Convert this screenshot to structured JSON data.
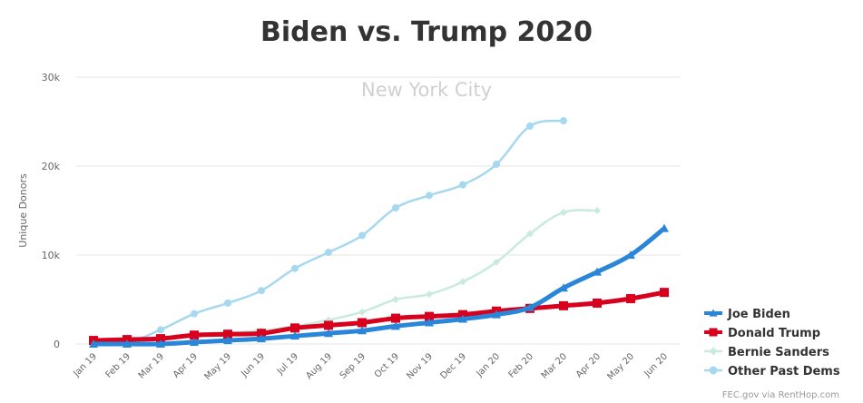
{
  "chart_data": {
    "type": "line",
    "title": "Biden vs. Trump 2020",
    "subtitle": "New York City",
    "ylabel": "Unique Donors",
    "xlabel": "",
    "categories": [
      "Jan 19",
      "Feb 19",
      "Mar 19",
      "Apr 19",
      "May 19",
      "Jun 19",
      "Jul 19",
      "Aug 19",
      "Sep 19",
      "Oct 19",
      "Nov 19",
      "Dec 19",
      "Jan 20",
      "Feb 20",
      "Mar 20",
      "Apr 20",
      "May 20",
      "Jun 20"
    ],
    "ylim": [
      0,
      30000
    ],
    "yticks": [
      {
        "value": 0,
        "label": "0"
      },
      {
        "value": 10000,
        "label": "10k"
      },
      {
        "value": 20000,
        "label": "20k"
      },
      {
        "value": 30000,
        "label": "30k"
      }
    ],
    "grid": true,
    "legend_position": "bottom-right",
    "series": [
      {
        "name": "Other Past Dems",
        "color": "#a6d8ef",
        "marker": "circle",
        "width": 2.5,
        "values": [
          100,
          200,
          1600,
          3400,
          4600,
          6000,
          8500,
          10300,
          12200,
          15300,
          16700,
          17900,
          20200,
          24500,
          25100,
          null,
          null,
          null
        ]
      },
      {
        "name": "Bernie Sanders",
        "color": "#c8eadf",
        "marker": "diamond",
        "width": 2.5,
        "values": [
          100,
          200,
          600,
          1100,
          1300,
          1500,
          2000,
          2700,
          3600,
          5000,
          5600,
          7000,
          9200,
          12400,
          14800,
          15000,
          null,
          null
        ]
      },
      {
        "name": "Donald Trump",
        "color": "#d7001d",
        "marker": "square",
        "width": 5,
        "values": [
          400,
          500,
          600,
          1000,
          1100,
          1200,
          1800,
          2100,
          2400,
          2900,
          3100,
          3300,
          3700,
          4000,
          4300,
          4600,
          5100,
          5800
        ]
      },
      {
        "name": "Joe Biden",
        "color": "#2a86d8",
        "marker": "triangle",
        "width": 5,
        "values": [
          0,
          0,
          0,
          200,
          400,
          600,
          900,
          1200,
          1500,
          2000,
          2400,
          2800,
          3300,
          4100,
          6300,
          8100,
          10000,
          13000
        ]
      }
    ],
    "legend_order": [
      "Joe Biden",
      "Donald Trump",
      "Bernie Sanders",
      "Other Past Dems"
    ],
    "credit": "FEC.gov via RentHop.com"
  }
}
